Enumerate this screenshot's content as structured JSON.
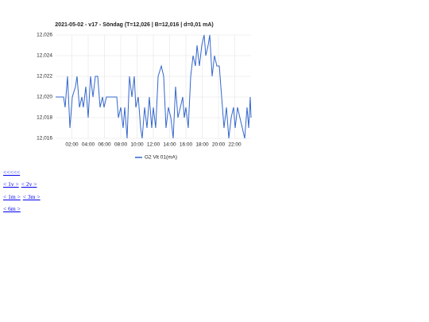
{
  "chart_data": {
    "type": "line",
    "title": "2021-05-02 - v17 - Söndag (T=12,026 | B=12,016 | d=0,01 mA)",
    "x": [
      0,
      0.98,
      1.17,
      1.46,
      1.76,
      2.05,
      2.44,
      2.63,
      2.93,
      3.22,
      3.41,
      3.71,
      4.0,
      4.29,
      4.59,
      4.88,
      5.17,
      5.46,
      5.76,
      5.95,
      6.24,
      7.51,
      7.71,
      8.0,
      8.29,
      8.49,
      8.78,
      9.07,
      9.37,
      9.66,
      9.85,
      10.15,
      10.44,
      10.63,
      10.93,
      11.22,
      11.51,
      11.8,
      12.0,
      12.29,
      12.59,
      12.98,
      13.27,
      13.56,
      13.85,
      14.15,
      14.44,
      14.73,
      15.02,
      15.32,
      15.61,
      15.8,
      16.0,
      16.29,
      16.59,
      16.88,
      17.17,
      17.37,
      17.66,
      17.95,
      18.24,
      18.44,
      18.73,
      18.93,
      19.22,
      19.51,
      19.8,
      20.1,
      20.39,
      20.68,
      20.98,
      21.27,
      21.56,
      21.85,
      22.05,
      22.34,
      22.63,
      22.93,
      23.22,
      23.51,
      23.71,
      23.9,
      24.0
    ],
    "series": [
      {
        "name": "G2 Vit 01(mA)",
        "color": "#3366cc",
        "values": [
          12.02,
          12.02,
          12.019,
          12.022,
          12.017,
          12.02,
          12.021,
          12.022,
          12.019,
          12.02,
          12.019,
          12.021,
          12.018,
          12.022,
          12.02,
          12.022,
          12.022,
          12.019,
          12.02,
          12.019,
          12.02,
          12.02,
          12.018,
          12.019,
          12.017,
          12.019,
          12.016,
          12.022,
          12.02,
          12.022,
          12.019,
          12.02,
          12.017,
          12.016,
          12.019,
          12.017,
          12.02,
          12.017,
          12.019,
          12.017,
          12.022,
          12.023,
          12.022,
          12.017,
          12.019,
          12.018,
          12.016,
          12.021,
          12.018,
          12.019,
          12.02,
          12.018,
          12.019,
          12.017,
          12.022,
          12.024,
          12.023,
          12.025,
          12.023,
          12.025,
          12.026,
          12.024,
          12.025,
          12.026,
          12.022,
          12.024,
          12.023,
          12.023,
          12.02,
          12.017,
          12.019,
          12.016,
          12.018,
          12.019,
          12.017,
          12.019,
          12.018,
          12.017,
          12.016,
          12.019,
          12.017,
          12.02,
          12.018
        ]
      }
    ],
    "xlim": [
      0,
      24
    ],
    "xticks": [
      {
        "value": 2,
        "label": "02:00"
      },
      {
        "value": 4,
        "label": "04:00"
      },
      {
        "value": 6,
        "label": "06:00"
      },
      {
        "value": 8,
        "label": "08:00"
      },
      {
        "value": 10,
        "label": "10:00"
      },
      {
        "value": 12,
        "label": "12:00"
      },
      {
        "value": 14,
        "label": "14:00"
      },
      {
        "value": 16,
        "label": "16:00"
      },
      {
        "value": 18,
        "label": "18:00"
      },
      {
        "value": 20,
        "label": "20:00"
      },
      {
        "value": 22,
        "label": "22:00"
      }
    ],
    "ylim": [
      12.016,
      12.026
    ],
    "yticks": [
      {
        "value": 12.016,
        "label": "12,016"
      },
      {
        "value": 12.018,
        "label": "12,018"
      },
      {
        "value": 12.02,
        "label": "12,020"
      },
      {
        "value": 12.022,
        "label": "12,022"
      },
      {
        "value": 12.024,
        "label": "12,024"
      },
      {
        "value": 12.026,
        "label": "12,026"
      }
    ],
    "grid": true,
    "legend": "bottom"
  },
  "nav": {
    "rows": [
      [
        "<<<<<"
      ],
      [
        "< 1v >",
        "< 2v >"
      ],
      [
        "< 1m >",
        "< 3m >"
      ],
      [
        "< 6m >"
      ]
    ]
  }
}
